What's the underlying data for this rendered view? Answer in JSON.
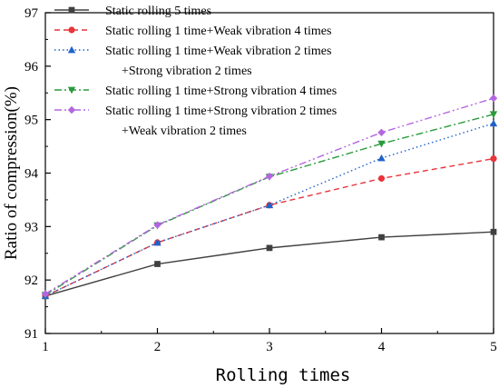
{
  "chart_data": {
    "type": "line",
    "xlabel": "Rolling times",
    "ylabel": "Ratio of compression(%)",
    "x": [
      1,
      2,
      3,
      4,
      5
    ],
    "xlim": [
      1,
      5
    ],
    "ylim": [
      91,
      97
    ],
    "xticks": [
      "1",
      "2",
      "3",
      "4",
      "5"
    ],
    "yticks": [
      "91",
      "92",
      "93",
      "94",
      "95",
      "96",
      "97"
    ],
    "grid": false,
    "legend_position": "top-left",
    "series": [
      {
        "name": "Static rolling  5 times",
        "name_lines": [
          "Static rolling  5 times"
        ],
        "values": [
          91.7,
          92.3,
          92.6,
          92.8,
          92.9
        ],
        "color": "#404040",
        "dash": "solid",
        "marker": "square"
      },
      {
        "name": "Static rolling  1 time+Weak vibration 4 times",
        "name_lines": [
          "Static rolling  1 time+Weak vibration 4 times"
        ],
        "values": [
          91.7,
          92.7,
          93.4,
          93.9,
          94.27
        ],
        "color": "#e8343a",
        "dash": "dashed",
        "marker": "circle"
      },
      {
        "name": "Static rolling  1 time+Weak vibration 2 times +Strong vibration 2 times",
        "name_lines": [
          "Static rolling  1 time+Weak vibration 2 times",
          "+Strong vibration 2 times"
        ],
        "values": [
          91.7,
          92.7,
          93.4,
          94.28,
          94.93
        ],
        "color": "#1f62c9",
        "dash": "dotted",
        "marker": "triangle-up"
      },
      {
        "name": "Static rolling  1 time+Strong vibration 4 times",
        "name_lines": [
          "Static rolling  1 time+Strong vibration 4 times"
        ],
        "values": [
          91.72,
          93.02,
          93.93,
          94.55,
          95.1
        ],
        "color": "#2a9a3c",
        "dash": "dash-dot",
        "marker": "triangle-down"
      },
      {
        "name": "Static rolling  1 time+Strong vibration 2 times +Weak vibration 2 times",
        "name_lines": [
          "Static rolling  1 time+Strong vibration 2 times",
          "+Weak vibration 2 times"
        ],
        "values": [
          91.74,
          93.03,
          93.94,
          94.76,
          95.4
        ],
        "color": "#b466e0",
        "dash": "dash-dot-dot",
        "marker": "diamond"
      }
    ]
  }
}
